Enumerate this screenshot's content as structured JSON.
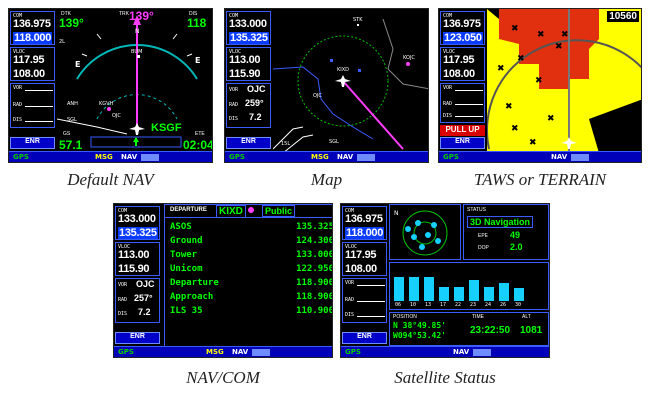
{
  "captions": {
    "default_nav": "Default NAV",
    "map": "Map",
    "taws": "TAWS or TERRAIN",
    "navcom": "NAV/COM",
    "satellite": "Satellite Status"
  },
  "status_bar": {
    "gps": "GPS",
    "msg": "MSG",
    "nav": "NAV"
  },
  "enr_label": "ENR",
  "pull_up": "PULL UP",
  "labels": {
    "com": "COM",
    "vloc": "VLOC",
    "vor": "VOR",
    "rad": "RAD",
    "dis": "DIS"
  },
  "default_nav": {
    "com_active": "136.975",
    "com_standby": "118.000",
    "vloc_active": "117.95",
    "vloc_standby": "108.00",
    "dtk_label": "DTK",
    "dtk": "139°",
    "trk_label": "TRK",
    "trk": "139°",
    "dis_label": "DIS",
    "dis": "118",
    "gs_label": "GS",
    "gs": "57.1",
    "ete_label": "ETE",
    "ete": "02:04",
    "waypoint": "KSGF",
    "wp_bum": "BUM",
    "wp_kgvh": "KGVH",
    "wp_ojc": "OJC",
    "wp_anh": "ANH",
    "wp_sgl": "SGL",
    "scale": "2L"
  },
  "map": {
    "com_active": "133.000",
    "com_standby": "135.325",
    "vloc_active": "113.00",
    "vloc_standby": "115.90",
    "vor": "OJC",
    "rad": "259°",
    "dis": "7.2",
    "wp_stk": "STK",
    "wp_kixd": "KIXD",
    "wp_kojc": "KOJC",
    "wp_ojc": "OJC",
    "wp_sgl": "SGL",
    "scale": "15L"
  },
  "taws": {
    "com_active": "136.975",
    "com_standby": "123.050",
    "vloc_active": "117.95",
    "vloc_standby": "108.00",
    "top_right": "10560"
  },
  "navcom": {
    "com_active": "133.000",
    "com_standby": "135.325",
    "vloc_active": "113.00",
    "vloc_standby": "115.90",
    "vor": "OJC",
    "rad": "257°",
    "dis": "7.2",
    "header": "DEPARTURE",
    "airport": "KIXD",
    "type": "Public",
    "rows": [
      {
        "name": "ASOS",
        "freq": "135.325"
      },
      {
        "name": "Ground",
        "freq": "124.300"
      },
      {
        "name": "Tower",
        "freq": "133.000"
      },
      {
        "name": "Unicom",
        "freq": "122.950"
      },
      {
        "name": "Departure",
        "freq": "118.900"
      },
      {
        "name": "Approach",
        "freq": "118.900"
      },
      {
        "name": "ILS 35",
        "freq": "110.900"
      }
    ]
  },
  "satellite": {
    "com_active": "136.975",
    "com_standby": "118.000",
    "vloc_active": "117.95",
    "vloc_standby": "108.00",
    "status_label": "STATUS",
    "status": "3D Navigation",
    "epe_label": "EPE",
    "epe": "49",
    "dop_label": "DOP",
    "dop": "2.0",
    "position_label": "POSITION",
    "time_label": "TIME",
    "alt_label": "ALT",
    "lat": "N 38°49.85'",
    "lon": "W094°53.42'",
    "time": "23:22:50",
    "alt": "1081",
    "sat_ids": [
      "06",
      "10",
      "13",
      "17",
      "22",
      "23",
      "24",
      "26",
      "30"
    ],
    "sat_levels": [
      0.75,
      0.75,
      0.75,
      0.45,
      0.45,
      0.65,
      0.45,
      0.55,
      0.4
    ]
  }
}
